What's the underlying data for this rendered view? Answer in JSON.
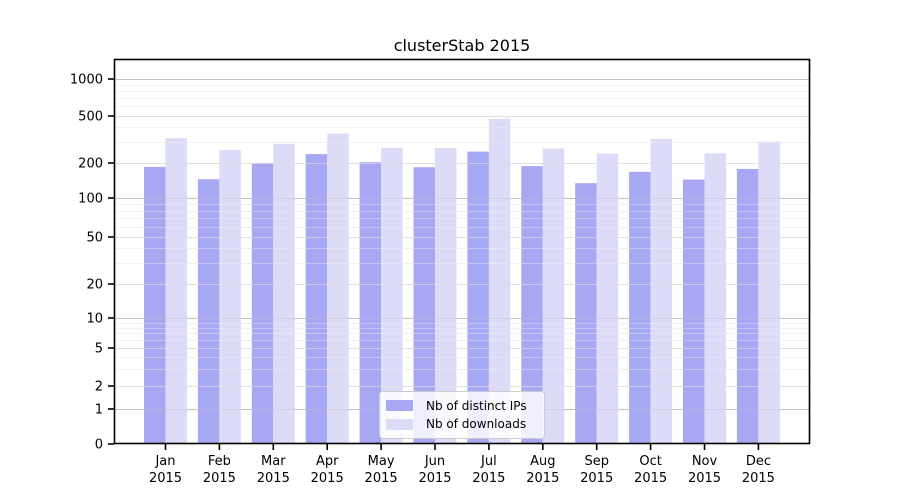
{
  "chart_data": {
    "type": "bar",
    "title": "clusterStab 2015",
    "categories": [
      "Jan",
      "Feb",
      "Mar",
      "Apr",
      "May",
      "Jun",
      "Jul",
      "Aug",
      "Sep",
      "Oct",
      "Nov",
      "Dec"
    ],
    "category_year": "2015",
    "series": [
      {
        "name": "Nb of distinct IPs",
        "color": "#a7a7f4",
        "values": [
          185,
          145,
          200,
          238,
          203,
          184,
          250,
          188,
          134,
          168,
          144,
          178
        ]
      },
      {
        "name": "Nb of downloads",
        "color": "#dcdcf8",
        "values": [
          325,
          258,
          290,
          355,
          268,
          268,
          473,
          265,
          240,
          320,
          241,
          304
        ]
      }
    ],
    "xlabel": "",
    "ylabel": "",
    "yscale": "log",
    "yticks": [
      0,
      1,
      2,
      5,
      10,
      20,
      50,
      100,
      200,
      500,
      1000
    ],
    "ylim": [
      0,
      1500
    ],
    "grid": true,
    "legend_position": "lower center"
  },
  "colors": {
    "background": "#ffffff",
    "spine": "#000000",
    "tick_label": "#000000",
    "grid_decade": "#c2c2c2",
    "grid_labeled": "#e0e0e0",
    "grid_minor": "#f0f0f0",
    "legend_border": "#cccccc"
  }
}
